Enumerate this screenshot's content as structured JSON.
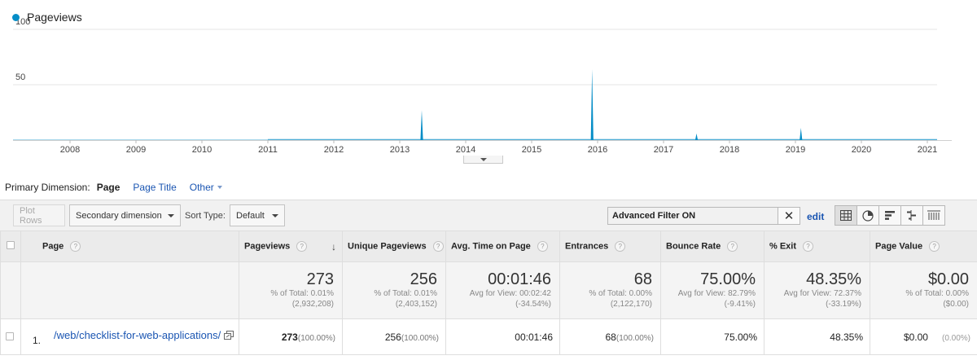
{
  "chart": {
    "legend_label": "Pageviews",
    "series_color": "#058dc7",
    "y_ticks": [
      "100",
      "50"
    ],
    "x_ticks": [
      "2008",
      "2009",
      "2010",
      "2011",
      "2012",
      "2013",
      "2014",
      "2015",
      "2016",
      "2017",
      "2018",
      "2019",
      "2020",
      "2021"
    ]
  },
  "chart_data": {
    "type": "area",
    "title": "",
    "series": [
      {
        "name": "Pageviews",
        "color": "#058dc7"
      }
    ],
    "ylim": [
      0,
      100
    ],
    "y_ticks": [
      50,
      100
    ],
    "x_ticks": [
      "2008",
      "2009",
      "2010",
      "2011",
      "2012",
      "2013",
      "2014",
      "2015",
      "2016",
      "2017",
      "2018",
      "2019",
      "2020",
      "2021"
    ],
    "spikes": [
      {
        "x": "2013-05",
        "y": 27
      },
      {
        "x": "2015-12",
        "y": 64
      },
      {
        "x": "2017-07",
        "y": 6
      },
      {
        "x": "2019-02",
        "y": 11
      }
    ],
    "baseline_start": "2011",
    "baseline_value": 1
  },
  "primary_dimension": {
    "label": "Primary Dimension:",
    "active": "Page",
    "page_title": "Page Title",
    "other": "Other"
  },
  "toolbar": {
    "plot_rows": "Plot Rows",
    "secondary_dimension": "Secondary dimension",
    "sort_type_label": "Sort Type:",
    "sort_type_value": "Default",
    "filter_value": "Advanced Filter ON",
    "edit": "edit"
  },
  "table": {
    "headers": {
      "page": "Page",
      "pageviews": "Pageviews",
      "unique": "Unique Pageviews",
      "avg_time": "Avg. Time on Page",
      "entrances": "Entrances",
      "bounce": "Bounce Rate",
      "exit": "% Exit",
      "value": "Page Value"
    },
    "totals": {
      "pageviews": {
        "big": "273",
        "l1": "% of Total: 0.01%",
        "l2": "(2,932,208)"
      },
      "unique": {
        "big": "256",
        "l1": "% of Total: 0.01%",
        "l2": "(2,403,152)"
      },
      "avg_time": {
        "big": "00:01:46",
        "l1": "Avg for View: 00:02:42",
        "l2": "(-34.54%)"
      },
      "entrances": {
        "big": "68",
        "l1": "% of Total: 0.00%",
        "l2": "(2,122,170)"
      },
      "bounce": {
        "big": "75.00%",
        "l1": "Avg for View: 82.79%",
        "l2": "(-9.41%)"
      },
      "exit": {
        "big": "48.35%",
        "l1": "Avg for View: 72.37%",
        "l2": "(-33.19%)"
      },
      "value": {
        "big": "$0.00",
        "l1": "% of Total: 0.00%",
        "l2": "($0.00)"
      }
    },
    "rows": [
      {
        "num": "1.",
        "page": "/web/checklist-for-web-applications/",
        "pageviews": "273",
        "pageviews_pct": "(100.00%)",
        "unique": "256",
        "unique_pct": "(100.00%)",
        "avg_time": "00:01:46",
        "entrances": "68",
        "entrances_pct": "(100.00%)",
        "bounce": "75.00%",
        "exit": "48.35%",
        "value": "$0.00",
        "value_pct": "(0.00%)"
      }
    ]
  }
}
